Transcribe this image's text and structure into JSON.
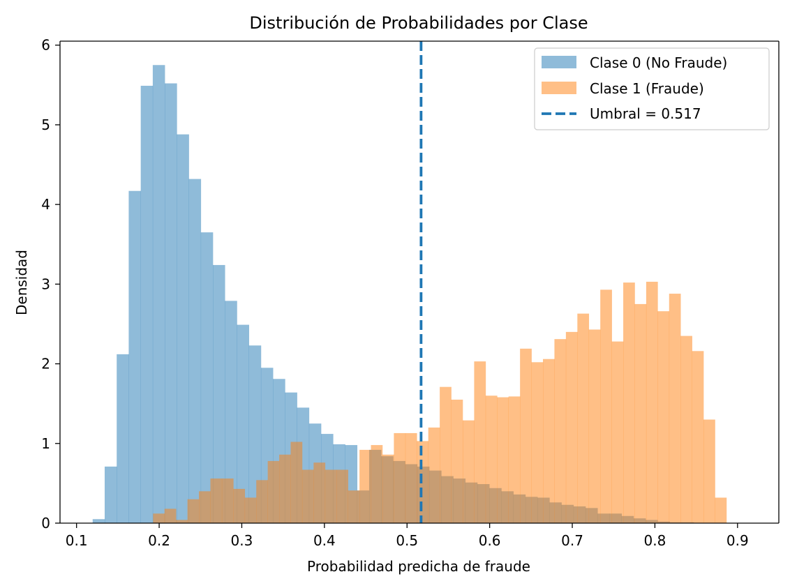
{
  "chart_data": {
    "type": "histogram",
    "title": "Distribución de Probabilidades por Clase",
    "xlabel": "Probabilidad predicha de fraude",
    "ylabel": "Densidad",
    "xlim": [
      0.08,
      0.95
    ],
    "ylim": [
      0,
      6.05
    ],
    "xticks": [
      0.1,
      0.2,
      0.3,
      0.4,
      0.5,
      0.6,
      0.7,
      0.8,
      0.9
    ],
    "xtick_labels": [
      "0.1",
      "0.2",
      "0.3",
      "0.4",
      "0.5",
      "0.6",
      "0.7",
      "0.8",
      "0.9"
    ],
    "yticks": [
      0,
      1,
      2,
      3,
      4,
      5,
      6
    ],
    "ytick_labels": [
      "0",
      "1",
      "2",
      "3",
      "4",
      "5",
      "6"
    ],
    "grid": false,
    "legend_position": "top-right",
    "series": [
      {
        "name": "Clase 0 (No Fraude)",
        "color": "#1f77b4",
        "opacity": 0.5,
        "bin_start": 0.1195,
        "bin_width": 0.01455,
        "values": [
          0.05,
          0.71,
          2.12,
          4.17,
          5.49,
          5.75,
          5.52,
          4.88,
          4.32,
          3.65,
          3.24,
          2.79,
          2.49,
          2.23,
          1.95,
          1.81,
          1.64,
          1.45,
          1.25,
          1.12,
          0.99,
          0.98,
          0.41,
          0.92,
          0.84,
          0.78,
          0.74,
          0.71,
          0.66,
          0.59,
          0.56,
          0.51,
          0.49,
          0.44,
          0.4,
          0.36,
          0.33,
          0.32,
          0.26,
          0.23,
          0.21,
          0.19,
          0.12,
          0.12,
          0.09,
          0.06,
          0.04,
          0.02,
          0.01,
          0.01,
          0.0,
          0.0,
          0.0,
          0.0
        ]
      },
      {
        "name": "Clase 1 (Fraude)",
        "color": "#ff7f0e",
        "opacity": 0.5,
        "bin_start": 0.1926,
        "bin_width": 0.01388,
        "values": [
          0.12,
          0.18,
          0.04,
          0.3,
          0.4,
          0.56,
          0.56,
          0.43,
          0.32,
          0.54,
          0.78,
          0.86,
          1.02,
          0.67,
          0.76,
          0.67,
          0.67,
          0.41,
          0.92,
          0.98,
          0.86,
          1.13,
          1.13,
          1.03,
          1.2,
          1.71,
          1.55,
          1.29,
          2.03,
          1.6,
          1.58,
          1.59,
          2.19,
          2.02,
          2.06,
          2.31,
          2.4,
          2.63,
          2.43,
          2.93,
          2.28,
          3.02,
          2.75,
          3.03,
          2.66,
          2.88,
          2.35,
          2.16,
          1.3,
          0.32
        ]
      }
    ],
    "threshold": {
      "label": "Umbral = 0.517",
      "value": 0.517,
      "color": "#1f77b4",
      "style": "dashed"
    }
  }
}
